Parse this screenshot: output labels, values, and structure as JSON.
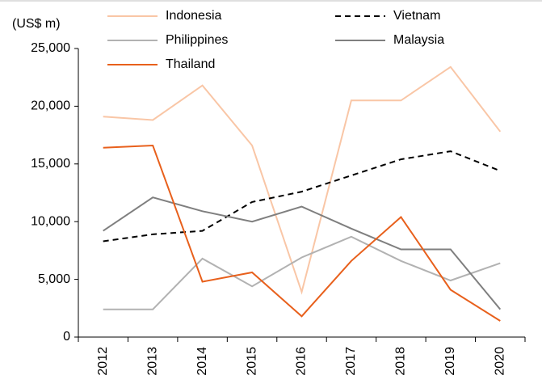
{
  "chart_data": {
    "type": "line",
    "y_label": "(US$ m)",
    "categories": [
      "2012",
      "2013",
      "2014",
      "2015",
      "2016",
      "2017",
      "2018",
      "2019",
      "2020"
    ],
    "series": [
      {
        "name": "Indonesia",
        "color": "#f9c6a6",
        "dashed": false,
        "values": [
          19100,
          18800,
          21800,
          16600,
          3900,
          20500,
          20500,
          23400,
          17800
        ]
      },
      {
        "name": "Vietnam",
        "color": "#000000",
        "dashed": true,
        "values": [
          8300,
          8900,
          9200,
          11700,
          12600,
          14000,
          15400,
          16100,
          14400
        ]
      },
      {
        "name": "Philippines",
        "color": "#b2b2b2",
        "dashed": false,
        "values": [
          2400,
          2400,
          6800,
          4400,
          6900,
          8700,
          6600,
          4900,
          6400
        ]
      },
      {
        "name": "Malaysia",
        "color": "#7f7f7f",
        "dashed": false,
        "values": [
          9200,
          12100,
          10900,
          10000,
          11300,
          9400,
          7600,
          7600,
          2400
        ]
      },
      {
        "name": "Thailand",
        "color": "#e8601c",
        "dashed": false,
        "values": [
          16400,
          16600,
          4800,
          5600,
          1800,
          6600,
          10400,
          4100,
          1400
        ]
      }
    ],
    "ylim": [
      0,
      25000
    ],
    "yticks": [
      0,
      {
        "value": 5000,
        "label": "5,000"
      },
      {
        "value": 10000,
        "label": "10,000"
      },
      {
        "value": 15000,
        "label": "15,000"
      },
      {
        "value": 20000,
        "label": "20,000"
      },
      {
        "value": 25000,
        "label": "25,000"
      }
    ],
    "legend": "top"
  }
}
